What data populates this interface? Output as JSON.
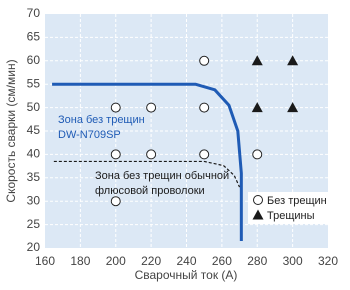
{
  "chart_data": {
    "type": "scatter",
    "x_label": "Сварочный ток (A)",
    "y_label": "Скорость сварки (см/мин)",
    "xlim": [
      160,
      320
    ],
    "xticks": [
      160,
      180,
      200,
      220,
      240,
      260,
      280,
      300,
      320
    ],
    "ylim": [
      20,
      70
    ],
    "yticks": [
      20,
      25,
      30,
      35,
      40,
      45,
      50,
      55,
      60,
      65,
      70
    ],
    "grid": true,
    "legend_position": "lower right",
    "series": [
      {
        "name": "Без трещин",
        "marker": "circle",
        "color": "#ffffff",
        "x": [
          200,
          200,
          200,
          220,
          220,
          250,
          250,
          250,
          280
        ],
        "values": [
          30,
          40,
          50,
          50,
          40,
          60,
          50,
          40,
          40
        ]
      },
      {
        "name": "Трещины",
        "marker": "triangle",
        "color": "#1a1a1a",
        "x": [
          280,
          300,
          280,
          300
        ],
        "values": [
          60,
          60,
          50,
          50
        ]
      }
    ],
    "curves": [
      {
        "color": "#1f5bb5",
        "dashed": false,
        "x": [
          164,
          245,
          256,
          264,
          269,
          271,
          271
        ],
        "y": [
          55,
          55,
          53.8,
          50.5,
          45,
          36,
          21.5
        ]
      },
      {
        "color": "#1a1a1a",
        "dashed": true,
        "x": [
          165,
          250,
          261,
          267,
          270
        ],
        "y": [
          38.5,
          38.5,
          37.6,
          35.5,
          33
        ]
      }
    ],
    "annotations": [
      {
        "lines": [
          "Зона без трещин",
          "DW-N709SP"
        ],
        "color": "#1f5bb5"
      },
      {
        "lines": [
          "Зона без трещин обычной",
          "флюсовой проволоки"
        ],
        "color": "#1a1a1a"
      }
    ]
  }
}
